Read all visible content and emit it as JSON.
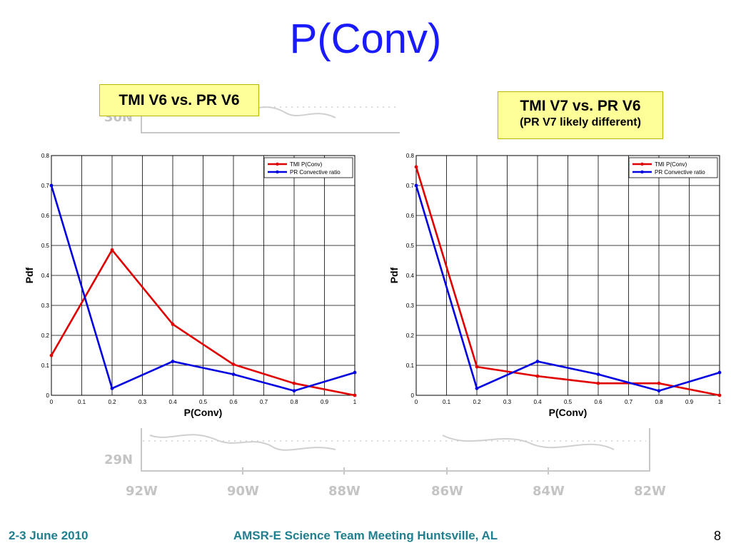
{
  "slide": {
    "title": "P(Conv)",
    "footer_date": "2-3 June 2010",
    "footer_meeting": "AMSR-E Science Team Meeting  Huntsville, AL",
    "page_number": "8"
  },
  "callouts": {
    "left": "TMI V6 vs. PR V6",
    "right_line1": "TMI V7 vs. PR V6",
    "right_line2": "(PR V7 likely different)"
  },
  "background_map": {
    "lat_labels": [
      "30N",
      "29N"
    ],
    "lon_labels": [
      "92W",
      "90W",
      "88W",
      "86W",
      "84W",
      "82W"
    ]
  },
  "colors": {
    "title": "#1a1aff",
    "series_tmi": "#e00000",
    "series_pr": "#0000e0",
    "callout_bg": "#ffff99",
    "footer": "#1f7f8f"
  },
  "chart_data": [
    {
      "type": "line",
      "xlabel": "P(Conv)",
      "ylabel": "Pdf",
      "xlim": [
        0,
        1
      ],
      "ylim": [
        0,
        0.8
      ],
      "x_ticks": [
        "0",
        "0.1",
        "0.2",
        "0.3",
        "0.4",
        "0.5",
        "0.6",
        "0.7",
        "0.8",
        "0.9",
        "1"
      ],
      "y_ticks": [
        "0",
        "0.1",
        "0.2",
        "0.3",
        "0.4",
        "0.5",
        "0.6",
        "0.7",
        "0.8"
      ],
      "grid": true,
      "legend_position": "top-right",
      "x": [
        0,
        0.2,
        0.4,
        0.6,
        0.8,
        1.0
      ],
      "series": [
        {
          "name": "TMI P(Conv)",
          "color": "#e00000",
          "values": [
            0.133,
            0.485,
            0.237,
            0.103,
            0.04,
            0.0
          ]
        },
        {
          "name": "PR Convective ratio",
          "color": "#0000e0",
          "values": [
            0.7,
            0.023,
            0.113,
            0.07,
            0.015,
            0.076
          ]
        }
      ]
    },
    {
      "type": "line",
      "xlabel": "P(Conv)",
      "ylabel": "Pdf",
      "xlim": [
        0,
        1
      ],
      "ylim": [
        0,
        0.8
      ],
      "x_ticks": [
        "0",
        "0.1",
        "0.2",
        "0.3",
        "0.4",
        "0.5",
        "0.6",
        "0.7",
        "0.8",
        "0.9",
        "1"
      ],
      "y_ticks": [
        "0",
        "0.1",
        "0.2",
        "0.3",
        "0.4",
        "0.5",
        "0.6",
        "0.7",
        "0.8"
      ],
      "grid": true,
      "legend_position": "top-right",
      "x": [
        0,
        0.2,
        0.4,
        0.6,
        0.8,
        1.0
      ],
      "series": [
        {
          "name": "TMI P(Conv)",
          "color": "#e00000",
          "values": [
            0.762,
            0.095,
            0.064,
            0.04,
            0.04,
            0.0
          ]
        },
        {
          "name": "PR Convective ratio",
          "color": "#0000e0",
          "values": [
            0.7,
            0.023,
            0.113,
            0.07,
            0.015,
            0.076
          ]
        }
      ]
    }
  ]
}
